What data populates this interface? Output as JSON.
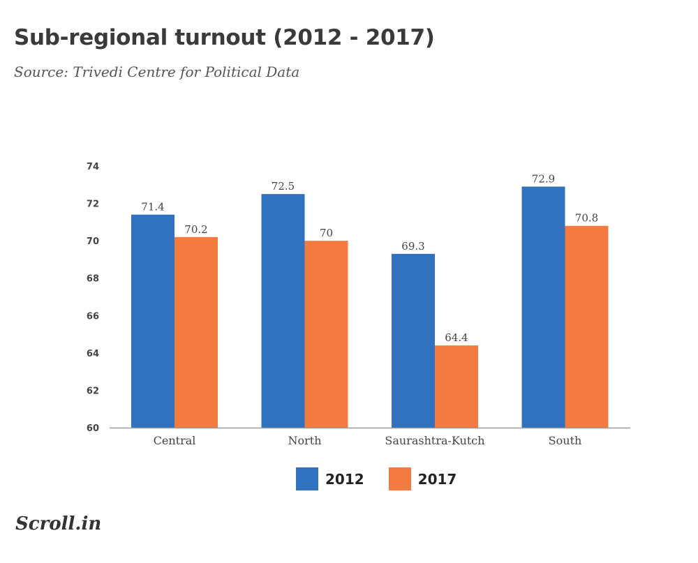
{
  "header": {
    "title": "Sub-regional turnout (2012 - 2017)",
    "subtitle": "Source: Trivedi Centre for Political Data"
  },
  "brand": {
    "text": "Scroll.in"
  },
  "colors": {
    "series_2012": "#3072c0",
    "series_2017": "#f47b3f",
    "axis": "#999999"
  },
  "chart_data": {
    "type": "bar",
    "title": "Sub-regional turnout (2012 - 2017)",
    "subtitle": "Source: Trivedi Centre for Political Data",
    "xlabel": "",
    "ylabel": "",
    "categories": [
      "Central",
      "North",
      "Saurashtra-Kutch",
      "South"
    ],
    "series": [
      {
        "name": "2012",
        "values": [
          71.4,
          72.5,
          69.3,
          72.9
        ],
        "labels": [
          "71.4",
          "72.5",
          "69.3",
          "72.9"
        ]
      },
      {
        "name": "2017",
        "values": [
          70.2,
          70,
          64.4,
          70.8
        ],
        "labels": [
          "70.2",
          "70",
          "64.4",
          "70.8"
        ]
      }
    ],
    "ylim": [
      60,
      74
    ],
    "yticks": [
      "60",
      "62",
      "64",
      "66",
      "68",
      "70",
      "72",
      "74"
    ],
    "grid": false,
    "legend_position": "bottom-center"
  }
}
